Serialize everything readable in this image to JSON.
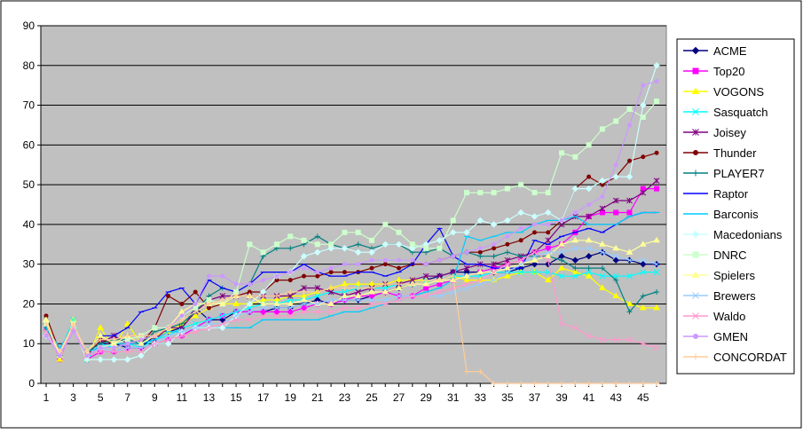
{
  "chart_data": {
    "type": "line",
    "title": "",
    "xlabel": "",
    "ylabel": "",
    "ylim": [
      0,
      90
    ],
    "yticks": [
      0,
      10,
      20,
      30,
      40,
      50,
      60,
      70,
      80,
      90
    ],
    "xlim": [
      1,
      46
    ],
    "xtick_labels": [
      1,
      3,
      5,
      7,
      9,
      11,
      13,
      15,
      17,
      19,
      21,
      23,
      25,
      27,
      29,
      31,
      33,
      35,
      37,
      39,
      41,
      43,
      45
    ],
    "grid": "horizontal",
    "legend_position": "right",
    "plot_background": "#c0c0c0",
    "series": [
      {
        "name": "ACME",
        "color": "#000080",
        "marker": "diamond",
        "values": [
          15,
          7,
          15,
          6,
          10,
          10,
          9,
          9,
          12,
          13,
          14,
          19,
          16,
          16,
          18,
          18,
          18,
          19,
          19,
          20,
          21,
          20,
          21,
          21,
          22,
          23,
          24,
          25,
          26,
          27,
          28,
          28,
          28,
          28,
          28,
          29,
          30,
          30,
          32,
          31,
          32,
          33,
          31,
          31,
          30,
          30
        ]
      },
      {
        "name": "Top20",
        "color": "#ff00ff",
        "marker": "square",
        "values": [
          15,
          6,
          15,
          6,
          8,
          8,
          9,
          9,
          10,
          11,
          12,
          14,
          16,
          17,
          18,
          18,
          18,
          18,
          18,
          19,
          20,
          20,
          21,
          22,
          22,
          23,
          22,
          22,
          24,
          25,
          26,
          27,
          28,
          29,
          30,
          31,
          33,
          34,
          35,
          38,
          42,
          43,
          43,
          43,
          49,
          49
        ]
      },
      {
        "name": "VOGONS",
        "color": "#ffff00",
        "marker": "triangle",
        "values": [
          16,
          6,
          16,
          6,
          14,
          9,
          15,
          10,
          12,
          13,
          15,
          17,
          19,
          20,
          20,
          20,
          21,
          21,
          22,
          22,
          23,
          24,
          25,
          25,
          25,
          25,
          26,
          26,
          26,
          26,
          27,
          26,
          26,
          26,
          27,
          28,
          28,
          26,
          29,
          28,
          27,
          24,
          22,
          20,
          19,
          19
        ]
      },
      {
        "name": "Sasquatch",
        "color": "#00ffff",
        "marker": "x",
        "values": [
          15,
          8,
          16,
          6,
          10,
          9,
          10,
          9,
          11,
          12,
          14,
          15,
          16,
          17,
          18,
          19,
          20,
          20,
          21,
          21,
          22,
          23,
          23,
          24,
          24,
          24,
          25,
          25,
          26,
          26,
          27,
          27,
          27,
          28,
          28,
          28,
          28,
          28,
          27,
          27,
          28,
          27,
          27,
          27,
          28,
          28
        ]
      },
      {
        "name": "Joisey",
        "color": "#800080",
        "marker": "star",
        "values": [
          14,
          8,
          14,
          8,
          10,
          12,
          10,
          10,
          11,
          14,
          14,
          18,
          21,
          22,
          22,
          22,
          22,
          22,
          22,
          24,
          24,
          23,
          22,
          23,
          24,
          25,
          25,
          26,
          27,
          27,
          28,
          29,
          30,
          30,
          31,
          32,
          33,
          36,
          40,
          42,
          42,
          44,
          46,
          46,
          48,
          51
        ]
      },
      {
        "name": "Thunder",
        "color": "#800000",
        "marker": "circle",
        "values": [
          17,
          8,
          15,
          7,
          11,
          10,
          12,
          10,
          14,
          22,
          20,
          23,
          19,
          20,
          22,
          23,
          23,
          26,
          26,
          27,
          27,
          28,
          28,
          28,
          29,
          30,
          29,
          30,
          30,
          31,
          32,
          33,
          33,
          34,
          35,
          36,
          38,
          38,
          41,
          49,
          52,
          50,
          52,
          56,
          57,
          58
        ]
      },
      {
        "name": "PLAYER7",
        "color": "#008080",
        "marker": "plus",
        "values": [
          14,
          8,
          14,
          8,
          10,
          11,
          11,
          10,
          13,
          14,
          15,
          18,
          22,
          24,
          23,
          25,
          32,
          34,
          34,
          35,
          37,
          35,
          34,
          35,
          34,
          35,
          35,
          33,
          33,
          34,
          32,
          33,
          32,
          32,
          33,
          32,
          32,
          32,
          31,
          29,
          29,
          29,
          26,
          18,
          22,
          23
        ]
      },
      {
        "name": "Raptor",
        "color": "#0000ff",
        "marker": "dash",
        "values": [
          15,
          8,
          15,
          8,
          12,
          12,
          14,
          18,
          19,
          23,
          24,
          20,
          26,
          24,
          23,
          25,
          28,
          28,
          28,
          30,
          28,
          27,
          27,
          28,
          28,
          27,
          28,
          30,
          35,
          39,
          32,
          30,
          30,
          29,
          29,
          29,
          36,
          35,
          37,
          38,
          39,
          38,
          40,
          42,
          43,
          43
        ]
      },
      {
        "name": "Barconis",
        "color": "#00ccff",
        "marker": "dash",
        "values": [
          14,
          9,
          14,
          8,
          9,
          10,
          10,
          10,
          11,
          13,
          13,
          14,
          14,
          14,
          14,
          14,
          16,
          16,
          16,
          16,
          16,
          17,
          18,
          18,
          19,
          20,
          21,
          22,
          23,
          24,
          26,
          37,
          36,
          37,
          38,
          38,
          40,
          41,
          41,
          42,
          40,
          40,
          40,
          42,
          43,
          43
        ]
      },
      {
        "name": "Macedonians",
        "color": "#ccffff",
        "marker": "diamond",
        "values": [
          12,
          8,
          14,
          6,
          6,
          6,
          6,
          7,
          10,
          10,
          13,
          14,
          14,
          14,
          17,
          20,
          23,
          27,
          28,
          32,
          33,
          34,
          34,
          33,
          33,
          35,
          35,
          34,
          35,
          36,
          38,
          38,
          41,
          40,
          41,
          43,
          42,
          43,
          41,
          49,
          49,
          51,
          52,
          52,
          70,
          80
        ]
      },
      {
        "name": "DNRC",
        "color": "#ccffcc",
        "marker": "square",
        "values": [
          15,
          7,
          15,
          7,
          9,
          10,
          11,
          12,
          14,
          14,
          17,
          19,
          21,
          20,
          23,
          35,
          33,
          35,
          37,
          36,
          35,
          35,
          38,
          38,
          36,
          40,
          38,
          35,
          34,
          34,
          41,
          48,
          48,
          48,
          49,
          50,
          48,
          48,
          58,
          57,
          60,
          64,
          66,
          69,
          67,
          71
        ]
      },
      {
        "name": "Spielers",
        "color": "#ffff99",
        "marker": "triangle",
        "values": [
          16,
          7,
          15,
          8,
          12,
          10,
          12,
          10,
          12,
          14,
          18,
          20,
          20,
          20,
          22,
          22,
          20,
          20,
          20,
          21,
          20,
          20,
          22,
          22,
          23,
          23,
          24,
          25,
          25,
          26,
          26,
          27,
          28,
          28,
          29,
          30,
          31,
          32,
          35,
          36,
          36,
          35,
          34,
          33,
          35,
          36
        ]
      },
      {
        "name": "Brewers",
        "color": "#99ccff",
        "marker": "x",
        "values": [
          13,
          7,
          14,
          7,
          9,
          8,
          9,
          9,
          10,
          12,
          13,
          14,
          15,
          15,
          17,
          18,
          19,
          19,
          19,
          20,
          20,
          21,
          21,
          21,
          21,
          21,
          22,
          22,
          22,
          22,
          23,
          24,
          25,
          26,
          28,
          30,
          32,
          33,
          33,
          34,
          34,
          33,
          32,
          31,
          31,
          30
        ]
      },
      {
        "name": "Waldo",
        "color": "#ff99cc",
        "marker": "x",
        "values": [
          13,
          7,
          14,
          7,
          8,
          8,
          8,
          8,
          10,
          11,
          12,
          13,
          14,
          15,
          16,
          16,
          17,
          17,
          17,
          18,
          18,
          18,
          19,
          19,
          20,
          20,
          21,
          22,
          22,
          23,
          24,
          25,
          26,
          28,
          30,
          31,
          33,
          31,
          15,
          14,
          12,
          11,
          11,
          11,
          10,
          9
        ]
      },
      {
        "name": "GMEN",
        "color": "#cc99ff",
        "marker": "circle",
        "values": [
          12,
          7,
          13,
          7,
          9,
          9,
          10,
          11,
          12,
          14,
          17,
          20,
          27,
          27,
          25,
          25,
          26,
          27,
          28,
          29,
          28,
          29,
          30,
          30,
          31,
          31,
          31,
          31,
          30,
          31,
          32,
          33,
          34,
          35,
          37,
          39,
          40,
          40,
          41,
          43,
          45,
          47,
          55,
          65,
          75,
          76
        ]
      },
      {
        "name": "CONCORDAT",
        "color": "#ffcc99",
        "marker": "plus",
        "values": [
          15,
          8,
          15,
          8,
          11,
          11,
          12,
          12,
          12,
          14,
          16,
          18,
          20,
          21,
          22,
          22,
          22,
          22,
          23,
          23,
          23,
          24,
          24,
          24,
          24,
          25,
          25,
          25,
          26,
          26,
          27,
          3,
          3,
          0,
          0,
          0,
          0,
          0,
          0,
          0,
          0,
          0,
          0,
          0,
          0,
          0
        ]
      }
    ]
  }
}
